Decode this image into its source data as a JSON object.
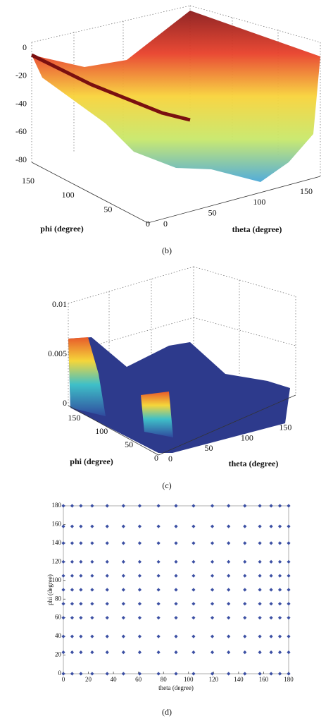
{
  "chart_data": [
    {
      "type": "surface",
      "caption": "(b)",
      "xlabel": "theta (degree)",
      "ylabel": "phi (degree)",
      "xlim": [
        0,
        180
      ],
      "xticks": [
        0,
        50,
        100,
        150
      ],
      "ylim": [
        0,
        180
      ],
      "yticks": [
        0,
        50,
        100,
        150
      ],
      "zlim": [
        -80,
        0
      ],
      "zticks": [
        0,
        -20,
        -40,
        -60,
        -80
      ]
    },
    {
      "type": "surface",
      "caption": "(c)",
      "xlabel": "theta (degree)",
      "ylabel": "phi (degree)",
      "xlim": [
        0,
        180
      ],
      "xticks": [
        0,
        50,
        100,
        150
      ],
      "ylim": [
        0,
        180
      ],
      "yticks": [
        0,
        50,
        100,
        150
      ],
      "zlim": [
        0,
        0.01
      ],
      "zticks": [
        0,
        0.005,
        0.01
      ]
    },
    {
      "type": "scatter",
      "caption": "(d)",
      "xlabel": "theta (degree)",
      "ylabel": "phi (degree)",
      "color": "#3b4fa3",
      "xlim": [
        0,
        180
      ],
      "xticks": [
        0,
        20,
        40,
        60,
        80,
        100,
        120,
        140,
        160,
        180
      ],
      "ylim": [
        0,
        180
      ],
      "yticks": [
        0,
        20,
        40,
        60,
        80,
        100,
        120,
        140,
        160,
        180
      ],
      "x": [
        0,
        7,
        14,
        23,
        35,
        48,
        61,
        76,
        90,
        104,
        119,
        132,
        145,
        157,
        166,
        173,
        180,
        0,
        7,
        14,
        23,
        35,
        48,
        61,
        76,
        90,
        104,
        119,
        132,
        145,
        157,
        166,
        173,
        180,
        0,
        7,
        14,
        23,
        35,
        48,
        61,
        76,
        90,
        104,
        119,
        132,
        145,
        157,
        166,
        173,
        180,
        0,
        7,
        14,
        23,
        35,
        48,
        61,
        76,
        90,
        104,
        119,
        132,
        145,
        157,
        166,
        173,
        180,
        0,
        7,
        14,
        23,
        35,
        48,
        61,
        76,
        90,
        104,
        119,
        132,
        145,
        157,
        166,
        173,
        180,
        0,
        7,
        14,
        23,
        35,
        48,
        61,
        76,
        90,
        104,
        119,
        132,
        145,
        157,
        166,
        173,
        180,
        0,
        7,
        14,
        23,
        35,
        48,
        61,
        76,
        90,
        104,
        119,
        132,
        145,
        157,
        166,
        173,
        180,
        0,
        7,
        14,
        23,
        35,
        48,
        61,
        76,
        90,
        104,
        119,
        132,
        145,
        157,
        166,
        173,
        180,
        0,
        7,
        14,
        23,
        35,
        48,
        61,
        76,
        90,
        104,
        119,
        132,
        145,
        157,
        166,
        173,
        180,
        0,
        7,
        14,
        23,
        35,
        48,
        61,
        76,
        90,
        104,
        119,
        132,
        145,
        157,
        166,
        173,
        180,
        0,
        7,
        14,
        23,
        35,
        48,
        61,
        76,
        90,
        104,
        119,
        132,
        145,
        157,
        166,
        173,
        180
      ],
      "values": [
        0,
        0,
        0,
        0,
        0,
        0,
        0,
        0,
        0,
        0,
        0,
        0,
        0,
        0,
        0,
        0,
        0,
        23,
        23,
        23,
        23,
        23,
        23,
        23,
        23,
        23,
        23,
        23,
        23,
        23,
        23,
        23,
        23,
        23,
        40,
        40,
        40,
        40,
        40,
        40,
        40,
        40,
        40,
        40,
        40,
        40,
        40,
        40,
        40,
        40,
        40,
        60,
        60,
        60,
        60,
        60,
        60,
        60,
        60,
        60,
        60,
        60,
        60,
        60,
        60,
        60,
        60,
        60,
        75,
        75,
        75,
        75,
        75,
        75,
        75,
        75,
        75,
        75,
        75,
        75,
        75,
        75,
        75,
        75,
        75,
        90,
        90,
        90,
        90,
        90,
        90,
        90,
        90,
        90,
        90,
        90,
        90,
        90,
        90,
        90,
        90,
        90,
        105,
        105,
        105,
        105,
        105,
        105,
        105,
        105,
        105,
        105,
        105,
        105,
        105,
        105,
        105,
        105,
        105,
        120,
        120,
        120,
        120,
        120,
        120,
        120,
        120,
        120,
        120,
        120,
        120,
        120,
        120,
        120,
        120,
        120,
        140,
        140,
        140,
        140,
        140,
        140,
        140,
        140,
        140,
        140,
        140,
        140,
        140,
        140,
        140,
        140,
        140,
        158,
        158,
        158,
        158,
        158,
        158,
        158,
        158,
        158,
        158,
        158,
        158,
        158,
        158,
        158,
        158,
        158,
        180,
        180,
        180,
        180,
        180,
        180,
        180,
        180,
        180,
        180,
        180,
        180,
        180,
        180,
        180,
        180,
        180
      ]
    }
  ]
}
